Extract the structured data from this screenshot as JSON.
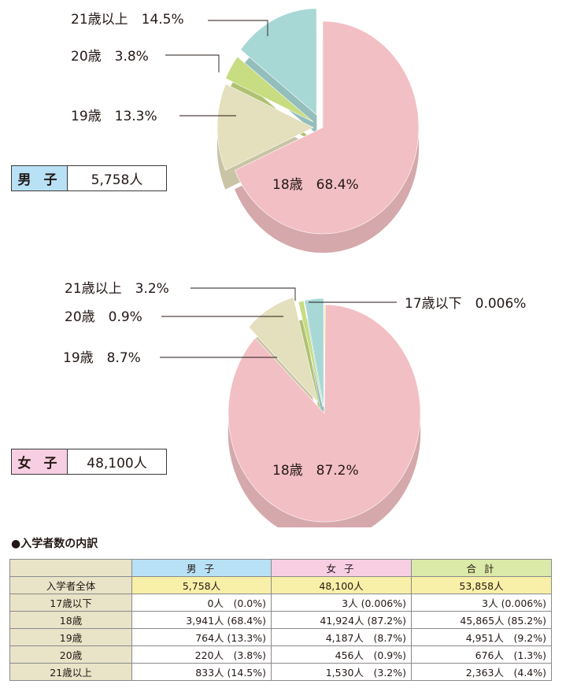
{
  "colors": {
    "age18": "#f2bfc4",
    "age19": "#e4dfbc",
    "age20": "#c8dc82",
    "age21plus": "#a8d8d6",
    "age17minus": "#f2e27a",
    "male_header": "#b8e1f5",
    "female_header": "#f8cfe2",
    "total_header": "#dbeaa8",
    "row_label": "#e9e3c8",
    "total_row": "#f8f0a8"
  },
  "chart_data": [
    {
      "type": "pie",
      "series_label": "男 子",
      "total_text": "5,758人",
      "slices": [
        {
          "label": "18歳",
          "value": 68.4,
          "text": "18歳　68.4%",
          "color_key": "age18"
        },
        {
          "label": "19歳",
          "value": 13.3,
          "text": "19歳　13.3%",
          "color_key": "age19"
        },
        {
          "label": "20歳",
          "value": 3.8,
          "text": "20歳　3.8%",
          "color_key": "age20"
        },
        {
          "label": "21歳以上",
          "value": 14.5,
          "text": "21歳以上　14.5%",
          "color_key": "age21plus"
        }
      ]
    },
    {
      "type": "pie",
      "series_label": "女 子",
      "total_text": "48,100人",
      "slices": [
        {
          "label": "18歳",
          "value": 87.2,
          "text": "18歳　87.2%",
          "color_key": "age18"
        },
        {
          "label": "19歳",
          "value": 8.7,
          "text": "19歳　8.7%",
          "color_key": "age19"
        },
        {
          "label": "20歳",
          "value": 0.9,
          "text": "20歳　0.9%",
          "color_key": "age20"
        },
        {
          "label": "21歳以上",
          "value": 3.2,
          "text": "21歳以上　3.2%",
          "color_key": "age21plus"
        },
        {
          "label": "17歳以下",
          "value": 0.006,
          "text": "17歳以下　0.006%",
          "color_key": "age17minus"
        }
      ]
    }
  ],
  "table": {
    "title": "●入学者数の内訳",
    "headers": [
      "男 子",
      "女 子",
      "合 計"
    ],
    "rows": [
      {
        "label": "入学者全体",
        "cells": [
          "5,758人",
          "48,100人",
          "53,858人"
        ]
      },
      {
        "label": "17歳以下",
        "cells": [
          "0人　(0.0%)",
          "3人 (0.006%)",
          "3人 (0.006%)"
        ]
      },
      {
        "label": "18歳",
        "cells": [
          "3,941人 (68.4%)",
          "41,924人 (87.2%)",
          "45,865人 (85.2%)"
        ]
      },
      {
        "label": "19歳",
        "cells": [
          "764人 (13.3%)",
          "4,187人　(8.7%)",
          "4,951人　(9.2%)"
        ]
      },
      {
        "label": "20歳",
        "cells": [
          "220人　(3.8%)",
          "456人　(0.9%)",
          "676人　(1.3%)"
        ]
      },
      {
        "label": "21歳以上",
        "cells": [
          "833人 (14.5%)",
          "1,530人　(3.2%)",
          "2,363人　(4.4%)"
        ]
      }
    ]
  }
}
